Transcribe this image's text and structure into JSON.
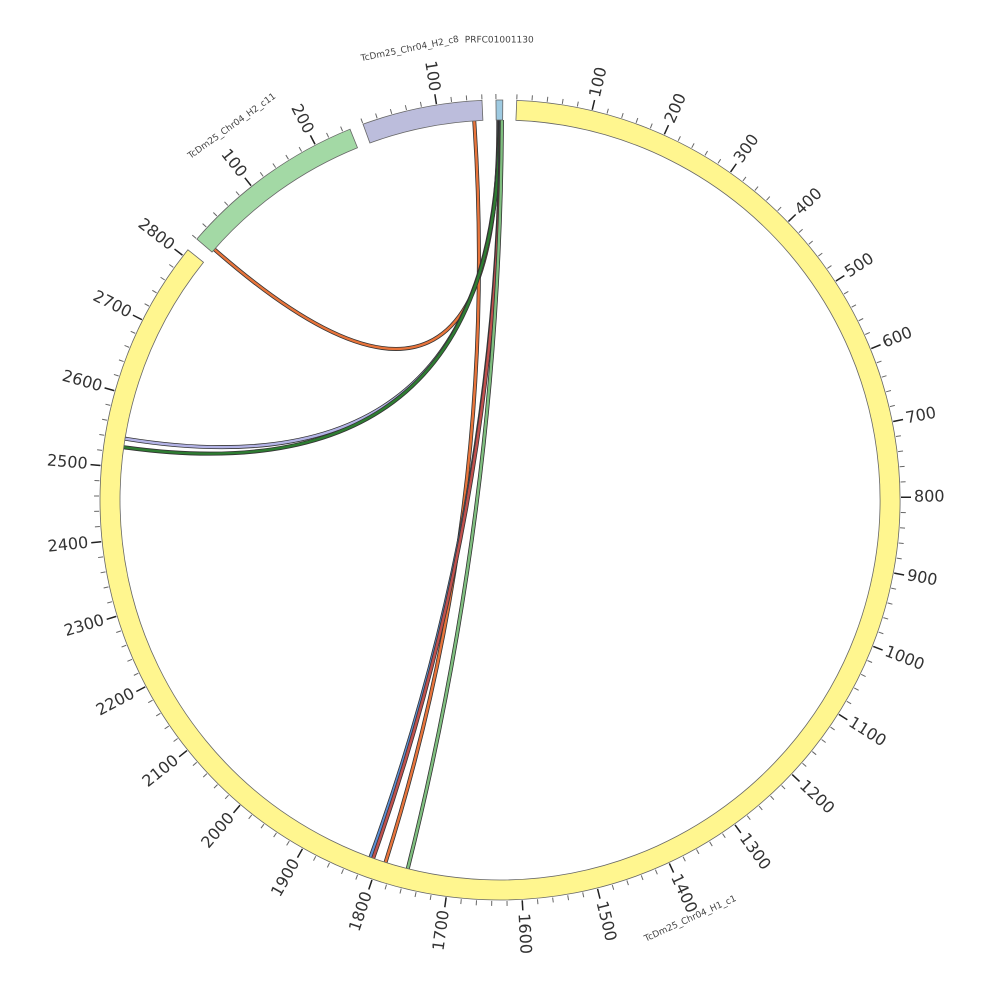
{
  "chart_data": {
    "type": "chord",
    "segments": [
      {
        "name": "TcDm25_Chr04_H1_c1",
        "length": 2810,
        "color": "#fff68f",
        "ticks": [
          100,
          200,
          300,
          400,
          500,
          600,
          700,
          800,
          900,
          1000,
          1100,
          1200,
          1300,
          1400,
          1500,
          1600,
          1700,
          1800,
          1900,
          2000,
          2100,
          2200,
          2300,
          2400,
          2500,
          2600,
          2700,
          2800
        ]
      },
      {
        "name": "TcDm25_Chr04_H2_c11",
        "length": 250,
        "color": "#a3d9a5",
        "ticks": [
          100,
          200
        ]
      },
      {
        "name": "TcDm25_Chr04_H2_c8",
        "length": 160,
        "color": "#bcbddc",
        "ticks": [
          100
        ]
      },
      {
        "name": "PRFC01001130",
        "length": 9,
        "color": "#9ecae1",
        "ticks": []
      }
    ],
    "minor_tick_interval": 20,
    "links": [
      {
        "source": {
          "segment": 3,
          "pos": 3
        },
        "target": {
          "segment": 1,
          "pos": 5
        },
        "color": "#e8743b"
      },
      {
        "source": {
          "segment": 2,
          "pos": 148
        },
        "target": {
          "segment": 0,
          "pos": 1790
        },
        "color": "#e8743b"
      },
      {
        "source": {
          "segment": 3,
          "pos": 4
        },
        "target": {
          "segment": 0,
          "pos": 2540
        },
        "color": "#b3b3e6"
      },
      {
        "source": {
          "segment": 3,
          "pos": 5
        },
        "target": {
          "segment": 0,
          "pos": 2528
        },
        "color": "#2e7d32"
      },
      {
        "source": {
          "segment": 3,
          "pos": 6
        },
        "target": {
          "segment": 0,
          "pos": 1812
        },
        "color": "#5b8fd6"
      },
      {
        "source": {
          "segment": 3,
          "pos": 7
        },
        "target": {
          "segment": 0,
          "pos": 1808
        },
        "color": "#c0504d"
      },
      {
        "source": {
          "segment": 3,
          "pos": 8
        },
        "target": {
          "segment": 0,
          "pos": 1758
        },
        "color": "#7fbf7f"
      }
    ]
  }
}
